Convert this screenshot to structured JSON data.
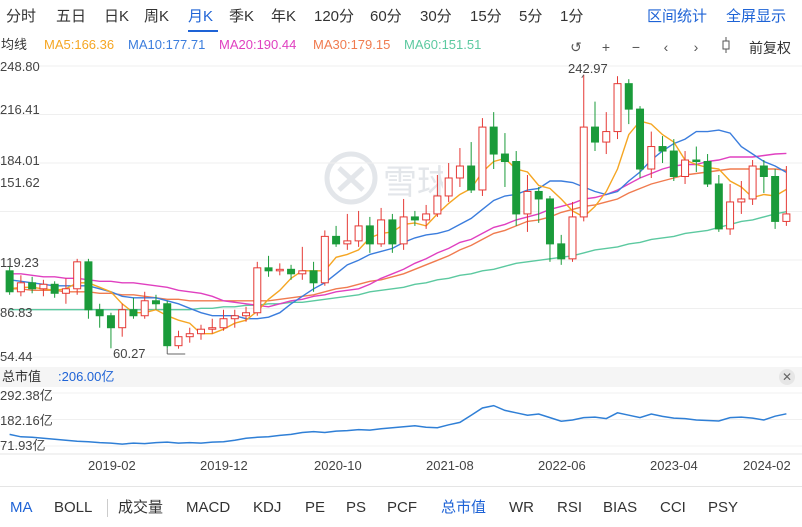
{
  "periods": [
    "分时",
    "五日",
    "日K",
    "周K",
    "月K",
    "季K",
    "年K",
    "120分",
    "60分",
    "30分",
    "15分",
    "5分",
    "1分"
  ],
  "active_period": "月K",
  "top_links": {
    "interval_stats": "区间统计",
    "fullscreen": "全屏显示"
  },
  "ma_legend": {
    "prefix": "均线",
    "items": [
      {
        "label": "MA5:166.36",
        "color": "#f5a623"
      },
      {
        "label": "MA10:177.71",
        "color": "#3b7ddd"
      },
      {
        "label": "MA20:190.44",
        "color": "#e040c0"
      },
      {
        "label": "MA30:179.15",
        "color": "#f07b4f"
      },
      {
        "label": "MA60:151.51",
        "color": "#5cc9a0"
      }
    ]
  },
  "toolbar": {
    "adjust_label": "前复权",
    "icons": [
      "undo-icon",
      "zoom-in-icon",
      "zoom-out-icon",
      "scroll-left-icon",
      "scroll-right-icon",
      "candle-icon"
    ]
  },
  "price_axis": [
    "248.80",
    "216.41",
    "184.01",
    "151.62",
    "119.23",
    "86.83",
    "54.44"
  ],
  "annotations": {
    "high": "242.97",
    "low": "60.27"
  },
  "watermark_text": "雪球",
  "sub_chart": {
    "title": "总市值",
    "value": ":206.00亿",
    "axis": [
      "292.38亿",
      "182.16亿",
      "71.93亿"
    ]
  },
  "date_axis": [
    "2019-02",
    "2019-12",
    "2020-10",
    "2021-08",
    "2022-06",
    "2023-04",
    "2024-02"
  ],
  "indicators": [
    "MA",
    "BOLL",
    "成交量",
    "MACD",
    "KDJ",
    "PE",
    "PS",
    "PCF",
    "总市值",
    "WR",
    "RSI",
    "BIAS",
    "CCI",
    "PSY"
  ],
  "active_indicators": [
    "MA",
    "总市值"
  ],
  "colors": {
    "up": "#e53935",
    "down": "#1a9b3a",
    "accent": "#1e63d6",
    "market_cap_line": "#2f7fd6"
  },
  "chart_data": {
    "type": "candlestick",
    "ylim": [
      54.44,
      248.8
    ],
    "x": [
      "2018-05",
      "2018-06",
      "2018-07",
      "2018-08",
      "2018-09",
      "2018-10",
      "2018-11",
      "2018-12",
      "2019-01",
      "2019-02",
      "2019-03",
      "2019-04",
      "2019-05",
      "2019-06",
      "2019-07",
      "2019-08",
      "2019-09",
      "2019-10",
      "2019-11",
      "2019-12",
      "2020-01",
      "2020-02",
      "2020-03",
      "2020-04",
      "2020-05",
      "2020-06",
      "2020-07",
      "2020-08",
      "2020-09",
      "2020-10",
      "2020-11",
      "2020-12",
      "2021-01",
      "2021-02",
      "2021-03",
      "2021-04",
      "2021-05",
      "2021-06",
      "2021-07",
      "2021-08",
      "2021-09",
      "2021-10",
      "2021-11",
      "2021-12",
      "2022-01",
      "2022-02",
      "2022-03",
      "2022-04",
      "2022-05",
      "2022-06",
      "2022-07",
      "2022-08",
      "2022-09",
      "2022-10",
      "2022-11",
      "2022-12",
      "2023-01",
      "2023-02",
      "2023-03",
      "2023-04",
      "2023-05",
      "2023-06",
      "2023-07",
      "2023-08",
      "2023-09",
      "2023-10",
      "2023-11",
      "2023-12",
      "2024-01",
      "2024-02"
    ],
    "candles": [
      [
        112,
        98,
        115,
        96
      ],
      [
        98,
        104,
        109,
        95
      ],
      [
        104,
        100,
        108,
        97
      ],
      [
        100,
        103,
        106,
        95
      ],
      [
        103,
        97,
        105,
        94
      ],
      [
        97,
        100,
        107,
        90
      ],
      [
        100,
        118,
        120,
        96
      ],
      [
        118,
        86,
        120,
        80
      ],
      [
        86,
        82,
        90,
        74
      ],
      [
        82,
        74,
        84,
        60.27
      ],
      [
        74,
        86,
        90,
        68
      ],
      [
        86,
        82,
        94,
        80
      ],
      [
        82,
        92,
        98,
        80
      ],
      [
        92,
        90,
        96,
        86
      ],
      [
        90,
        62,
        92,
        60
      ],
      [
        62,
        68,
        72,
        60
      ],
      [
        68,
        70,
        74,
        64
      ],
      [
        70,
        73,
        76,
        66
      ],
      [
        73,
        74,
        80,
        70
      ],
      [
        74,
        80,
        86,
        72
      ],
      [
        80,
        82,
        86,
        74
      ],
      [
        82,
        84,
        88,
        78
      ],
      [
        84,
        114,
        118,
        82
      ],
      [
        114,
        112,
        122,
        108
      ],
      [
        112,
        113,
        117,
        109
      ],
      [
        113,
        110,
        116,
        106
      ],
      [
        110,
        112,
        128,
        106
      ],
      [
        112,
        104,
        118,
        98
      ],
      [
        104,
        135,
        139,
        102
      ],
      [
        135,
        130,
        142,
        128
      ],
      [
        130,
        132,
        150,
        126
      ],
      [
        132,
        142,
        152,
        128
      ],
      [
        142,
        130,
        148,
        124
      ],
      [
        130,
        146,
        154,
        128
      ],
      [
        146,
        130,
        150,
        124
      ],
      [
        130,
        148,
        160,
        126
      ],
      [
        148,
        146,
        152,
        142
      ],
      [
        146,
        150,
        156,
        140
      ],
      [
        150,
        162,
        176,
        148
      ],
      [
        162,
        174,
        184,
        158
      ],
      [
        174,
        182,
        194,
        168
      ],
      [
        182,
        166,
        198,
        164
      ],
      [
        166,
        208,
        214,
        162
      ],
      [
        208,
        190,
        218,
        180
      ],
      [
        190,
        185,
        204,
        168
      ],
      [
        185,
        150,
        192,
        142
      ],
      [
        150,
        165,
        176,
        138
      ],
      [
        165,
        160,
        168,
        144
      ],
      [
        160,
        130,
        162,
        118
      ],
      [
        130,
        120,
        136,
        116
      ],
      [
        120,
        148,
        158,
        118
      ],
      [
        148,
        208,
        242.97,
        145
      ],
      [
        208,
        198,
        225,
        192
      ],
      [
        198,
        205,
        218,
        190
      ],
      [
        205,
        237,
        242,
        200
      ],
      [
        237,
        220,
        240,
        210
      ],
      [
        220,
        180,
        222,
        174
      ],
      [
        180,
        195,
        205,
        174
      ],
      [
        195,
        192,
        202,
        184
      ],
      [
        192,
        175,
        200,
        172
      ],
      [
        175,
        186,
        192,
        170
      ],
      [
        186,
        185,
        195,
        178
      ],
      [
        185,
        170,
        190,
        168
      ],
      [
        170,
        140,
        176,
        138
      ],
      [
        140,
        158,
        170,
        136
      ],
      [
        158,
        160,
        172,
        150
      ],
      [
        160,
        182,
        186,
        156
      ],
      [
        182,
        175,
        186,
        164
      ],
      [
        175,
        145,
        180,
        140
      ],
      [
        145,
        150,
        182,
        142
      ]
    ],
    "ma": {
      "MA5": [
        100,
        101,
        101,
        100,
        99,
        100,
        104,
        104,
        101,
        98,
        90,
        84,
        84,
        86,
        82,
        79,
        77,
        70,
        70,
        73,
        77,
        79,
        85,
        93,
        99,
        107,
        112,
        112,
        112,
        121,
        123,
        126,
        134,
        137,
        138,
        143,
        144,
        142,
        150,
        157,
        163,
        167,
        178,
        185,
        187,
        180,
        178,
        169,
        167,
        160,
        152,
        148,
        155,
        165,
        180,
        203,
        212,
        210,
        203,
        198,
        186,
        183,
        181,
        180,
        172,
        168,
        161,
        163,
        162,
        166.36
      ],
      "MA10": [
        106,
        105,
        104,
        103,
        102,
        102,
        102,
        102,
        100,
        98,
        95,
        94,
        94,
        94,
        92,
        90,
        87,
        84,
        82,
        82,
        82,
        80,
        80,
        81,
        84,
        90,
        95,
        100,
        104,
        110,
        116,
        119,
        123,
        125,
        127,
        131,
        134,
        136,
        137,
        139,
        143,
        147,
        153,
        159,
        162,
        163,
        166,
        167,
        172,
        172,
        171,
        168,
        165,
        163,
        165,
        172,
        178,
        186,
        192,
        197,
        200,
        205,
        205,
        206,
        204,
        195,
        190,
        185,
        182,
        177.71
      ],
      "MA20": [
        110,
        110,
        109,
        108,
        108,
        107,
        107,
        106,
        105,
        105,
        104,
        104,
        103,
        102,
        101,
        99,
        98,
        97,
        95,
        92,
        91,
        90,
        89,
        88,
        90,
        92,
        93,
        95,
        96,
        98,
        99,
        100,
        103,
        107,
        110,
        113,
        117,
        120,
        124,
        127,
        131,
        133,
        137,
        141,
        143,
        146,
        148,
        150,
        153,
        155,
        157,
        160,
        161,
        163,
        166,
        170,
        174,
        177,
        180,
        182,
        183,
        183,
        185,
        186,
        188,
        188,
        188,
        189,
        190,
        190.44
      ],
      "MA30": [
        100,
        100,
        99,
        99,
        99,
        98,
        98,
        98,
        97,
        97,
        96,
        96,
        95,
        94,
        93,
        93,
        92,
        92,
        92,
        92,
        92,
        92,
        92,
        92,
        93,
        94,
        95,
        96,
        98,
        100,
        101,
        103,
        105,
        106,
        108,
        110,
        113,
        116,
        119,
        122,
        126,
        129,
        133,
        137,
        139,
        142,
        145,
        146,
        148,
        151,
        153,
        155,
        156,
        158,
        160,
        164,
        167,
        170,
        172,
        174,
        176,
        177,
        178,
        179,
        180,
        180,
        180,
        180,
        180,
        179.15
      ],
      "MA60": [
        86,
        86,
        86,
        86,
        86,
        86,
        86,
        86,
        86,
        86,
        86,
        86,
        86,
        86,
        86,
        86,
        86,
        87,
        87,
        88,
        88,
        89,
        89,
        90,
        90,
        91,
        91,
        92,
        93,
        94,
        95,
        96,
        98,
        99,
        100,
        101,
        103,
        104,
        106,
        107,
        109,
        110,
        112,
        113,
        115,
        117,
        118,
        119,
        120,
        121,
        122,
        124,
        126,
        127,
        128,
        130,
        131,
        133,
        134,
        135,
        137,
        138,
        139,
        141,
        143,
        145,
        146,
        148,
        150,
        151.51
      ]
    },
    "market_cap": {
      "ylim": [
        71.93,
        292.38
      ],
      "values": [
        120,
        110,
        108,
        104,
        100,
        96,
        92,
        90,
        86,
        84,
        80,
        84,
        82,
        86,
        88,
        84,
        86,
        84,
        88,
        90,
        96,
        104,
        108,
        110,
        116,
        120,
        128,
        132,
        128,
        134,
        136,
        140,
        138,
        144,
        148,
        152,
        156,
        150,
        148,
        160,
        170,
        200,
        230,
        240,
        220,
        210,
        200,
        205,
        190,
        175,
        180,
        190,
        192,
        186,
        210,
        200,
        190,
        205,
        195,
        188,
        186,
        180,
        178,
        176,
        190,
        192,
        188,
        180,
        196,
        206
      ]
    }
  }
}
